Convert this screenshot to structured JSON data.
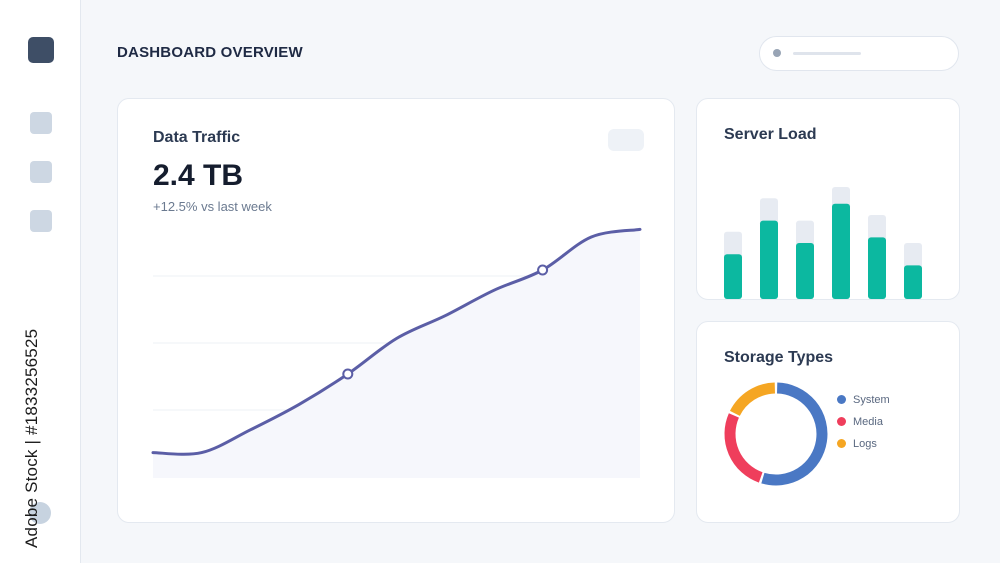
{
  "header": {
    "title": "DASHBOARD OVERVIEW"
  },
  "sidebar": {
    "items": [
      "nav-item",
      "nav-item",
      "nav-item"
    ]
  },
  "watermark": {
    "text": "Adobe Stock | #1833256525"
  },
  "traffic": {
    "title": "Data Traffic",
    "value": "2.4 TB",
    "change": "+12.5% vs last week",
    "line_color": "#5b5ea6"
  },
  "server": {
    "title": "Server Load",
    "bar_color": "#0cb8a0",
    "track_color": "#e7ebf2"
  },
  "storage": {
    "title": "Storage Types",
    "legend": [
      {
        "label": "System",
        "color": "#4a78c4"
      },
      {
        "label": "Media",
        "color": "#ef3e5c"
      },
      {
        "label": "Logs",
        "color": "#f5a623"
      }
    ]
  },
  "chart_data": [
    {
      "type": "line",
      "title": "Data Traffic",
      "x": [
        0,
        1,
        2,
        3,
        4,
        5,
        6,
        7,
        8,
        9,
        10
      ],
      "y": [
        10,
        10,
        19,
        29,
        41,
        55,
        64,
        74,
        82,
        95,
        98
      ],
      "ylim": [
        0,
        110
      ],
      "markers": [
        4,
        8
      ],
      "grid": true
    },
    {
      "type": "bar",
      "title": "Server Load",
      "categories": [
        "1",
        "2",
        "3",
        "4",
        "5",
        "6"
      ],
      "values": [
        40,
        70,
        50,
        85,
        55,
        30
      ],
      "capacity": [
        60,
        90,
        70,
        100,
        75,
        50
      ],
      "ylim": [
        0,
        100
      ]
    },
    {
      "type": "pie",
      "title": "Storage Types",
      "labels": [
        "System",
        "Media",
        "Logs"
      ],
      "values": [
        55,
        27,
        18
      ]
    }
  ]
}
